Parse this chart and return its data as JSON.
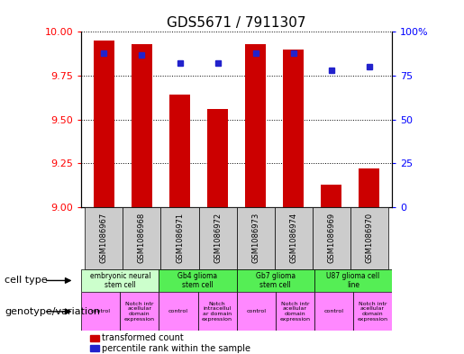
{
  "title": "GDS5671 / 7911307",
  "samples": [
    "GSM1086967",
    "GSM1086968",
    "GSM1086971",
    "GSM1086972",
    "GSM1086973",
    "GSM1086974",
    "GSM1086969",
    "GSM1086970"
  ],
  "bar_values": [
    9.95,
    9.93,
    9.64,
    9.56,
    9.93,
    9.9,
    9.13,
    9.22
  ],
  "dot_values": [
    88,
    87,
    82,
    82,
    88,
    88,
    78,
    80
  ],
  "ylim": [
    9.0,
    10.0
  ],
  "y2lim": [
    0,
    100
  ],
  "yticks": [
    9.0,
    9.25,
    9.5,
    9.75,
    10.0
  ],
  "y2ticks": [
    0,
    25,
    50,
    75,
    100
  ],
  "bar_color": "#cc0000",
  "dot_color": "#2222cc",
  "xticklabel_bg": "#cccccc",
  "cell_type_row": [
    {
      "label": "embryonic neural\nstem cell",
      "span": [
        0,
        2
      ],
      "color": "#ccffcc"
    },
    {
      "label": "Gb4 glioma\nstem cell",
      "span": [
        2,
        4
      ],
      "color": "#55ee55"
    },
    {
      "label": "Gb7 glioma\nstem cell",
      "span": [
        4,
        6
      ],
      "color": "#55ee55"
    },
    {
      "label": "U87 glioma cell\nline",
      "span": [
        6,
        8
      ],
      "color": "#55ee55"
    }
  ],
  "genotype_row": [
    {
      "label": "control",
      "span": [
        0,
        1
      ],
      "color": "#ff88ff"
    },
    {
      "label": "Notch intr\nacellular\ndomain\nexpression",
      "span": [
        1,
        2
      ],
      "color": "#ff88ff"
    },
    {
      "label": "control",
      "span": [
        2,
        3
      ],
      "color": "#ff88ff"
    },
    {
      "label": "Notch\nintracellul\nar domain\nexpression",
      "span": [
        3,
        4
      ],
      "color": "#ff88ff"
    },
    {
      "label": "control",
      "span": [
        4,
        5
      ],
      "color": "#ff88ff"
    },
    {
      "label": "Notch intr\nacellular\ndomain\nexpression",
      "span": [
        5,
        6
      ],
      "color": "#ff88ff"
    },
    {
      "label": "control",
      "span": [
        6,
        7
      ],
      "color": "#ff88ff"
    },
    {
      "label": "Notch intr\nacellular\ndomain\nexpression",
      "span": [
        7,
        8
      ],
      "color": "#ff88ff"
    }
  ],
  "label_cell_type": "cell type",
  "label_genotype": "genotype/variation",
  "legend_bar": "transformed count",
  "legend_dot": "percentile rank within the sample"
}
